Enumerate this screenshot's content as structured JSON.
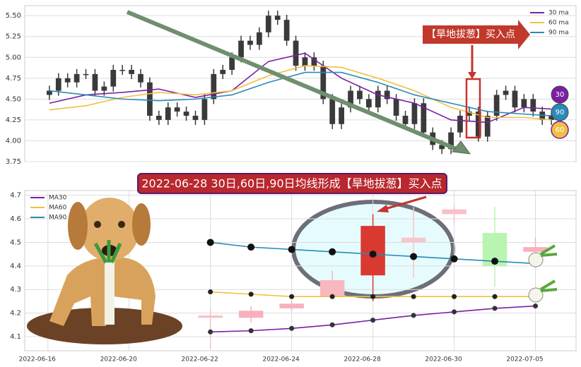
{
  "chart_data": [
    {
      "type": "candlestick",
      "annotation": "【旱地拔葱】买入点",
      "badges": [
        "30",
        "90",
        "60"
      ],
      "x": [
        0,
        1,
        2,
        3,
        4,
        5,
        6,
        7,
        8,
        9,
        10,
        11,
        12,
        13,
        14,
        15,
        16,
        17,
        18,
        19,
        20,
        21,
        22,
        23,
        24,
        25,
        26,
        27,
        28,
        29,
        30,
        31,
        32,
        33,
        34,
        35,
        36,
        37,
        38,
        39,
        40,
        41,
        42,
        43,
        44,
        45,
        46,
        47,
        48,
        49,
        50,
        51,
        52,
        53,
        54,
        55
      ],
      "open": [
        4.55,
        4.6,
        4.75,
        4.7,
        4.8,
        4.8,
        4.6,
        4.65,
        4.85,
        4.85,
        4.8,
        4.7,
        4.3,
        4.25,
        4.4,
        4.35,
        4.3,
        4.25,
        4.5,
        4.8,
        4.85,
        5.0,
        5.2,
        5.15,
        5.3,
        5.5,
        5.45,
        5.2,
        4.9,
        5.0,
        4.9,
        4.5,
        4.2,
        4.4,
        4.6,
        4.5,
        4.4,
        4.6,
        4.5,
        4.3,
        4.2,
        4.45,
        4.1,
        3.95,
        3.9,
        4.1,
        4.3,
        4.35,
        4.05,
        4.3,
        4.55,
        4.6,
        4.4,
        4.5,
        4.35,
        4.25
      ],
      "high": [
        4.66,
        4.81,
        4.81,
        4.86,
        4.86,
        4.86,
        4.71,
        4.91,
        4.91,
        4.91,
        4.86,
        4.76,
        4.36,
        4.46,
        4.46,
        4.41,
        4.36,
        4.56,
        4.86,
        4.91,
        5.06,
        5.26,
        5.26,
        5.36,
        5.56,
        5.56,
        5.51,
        5.26,
        5.06,
        5.06,
        4.96,
        4.56,
        4.46,
        4.66,
        4.66,
        4.56,
        4.66,
        4.66,
        4.56,
        4.36,
        4.51,
        4.51,
        4.16,
        4.01,
        4.16,
        4.36,
        4.41,
        4.41,
        4.36,
        4.61,
        4.66,
        4.66,
        4.56,
        4.56,
        4.41,
        4.36
      ],
      "low": [
        4.49,
        4.54,
        4.64,
        4.64,
        4.74,
        4.54,
        4.54,
        4.59,
        4.79,
        4.74,
        4.64,
        4.24,
        4.19,
        4.19,
        4.29,
        4.24,
        4.19,
        4.19,
        4.44,
        4.74,
        4.79,
        4.94,
        5.09,
        5.09,
        5.24,
        5.39,
        5.14,
        4.84,
        4.84,
        4.84,
        4.44,
        4.14,
        4.14,
        4.34,
        4.44,
        4.34,
        4.34,
        4.44,
        4.24,
        4.14,
        4.14,
        4.04,
        3.89,
        3.84,
        3.84,
        4.04,
        4.24,
        3.99,
        3.99,
        4.24,
        4.49,
        4.34,
        4.34,
        4.29,
        4.19,
        4.19
      ],
      "close": [
        4.6,
        4.75,
        4.7,
        4.8,
        4.8,
        4.6,
        4.65,
        4.85,
        4.85,
        4.8,
        4.7,
        4.3,
        4.25,
        4.4,
        4.35,
        4.3,
        4.25,
        4.5,
        4.8,
        4.85,
        5.0,
        5.2,
        5.15,
        5.3,
        5.5,
        5.45,
        5.2,
        4.9,
        5.0,
        4.9,
        4.5,
        4.2,
        4.4,
        4.6,
        4.5,
        4.4,
        4.6,
        4.5,
        4.3,
        4.2,
        4.45,
        4.1,
        3.95,
        3.9,
        4.1,
        4.3,
        4.35,
        4.05,
        4.3,
        4.55,
        4.6,
        4.4,
        4.5,
        4.35,
        4.25,
        4.3
      ],
      "candle_color": "#3a3a3a",
      "series": [
        {
          "name": "30 ma",
          "color": "#7b1fa2",
          "x": [
            0,
            4,
            8,
            12,
            16,
            20,
            24,
            28,
            32,
            36,
            40,
            44,
            48,
            52,
            55
          ],
          "values": [
            4.45,
            4.55,
            4.58,
            4.62,
            4.52,
            4.6,
            4.95,
            5.05,
            4.75,
            4.55,
            4.45,
            4.25,
            4.22,
            4.4,
            4.38
          ]
        },
        {
          "name": "60 ma",
          "color": "#f0c040",
          "x": [
            0,
            4,
            8,
            12,
            16,
            20,
            24,
            28,
            32,
            36,
            40,
            44,
            48,
            52,
            55
          ],
          "values": [
            4.37,
            4.42,
            4.52,
            4.58,
            4.55,
            4.6,
            4.78,
            4.9,
            4.88,
            4.75,
            4.6,
            4.4,
            4.28,
            4.28,
            4.25
          ]
        },
        {
          "name": "90 ma",
          "color": "#2a8ab8",
          "x": [
            0,
            4,
            8,
            12,
            16,
            20,
            24,
            28,
            32,
            36,
            40,
            44,
            48,
            52,
            55
          ],
          "values": [
            4.6,
            4.55,
            4.5,
            4.48,
            4.5,
            4.55,
            4.7,
            4.82,
            4.82,
            4.7,
            4.55,
            4.45,
            4.35,
            4.32,
            4.3
          ]
        }
      ],
      "xlim": [
        -2.7,
        57.7
      ],
      "ylim": [
        3.75,
        5.62
      ],
      "yticks": [
        3.75,
        {
          "value": 4.0,
          "label": "4.00"
        },
        4.25,
        {
          "value": 4.5,
          "label": "4.50"
        },
        4.75,
        {
          "value": 5.0,
          "label": "5.00"
        },
        5.25,
        {
          "value": 5.5,
          "label": "5.50"
        }
      ],
      "grid": true,
      "legend": "upper right"
    },
    {
      "type": "candlestick",
      "title": "2022-06-28 30日,60日,90日均线形成【旱地拔葱】买入点",
      "x": [
        0,
        1,
        2,
        3,
        4,
        5,
        6,
        7,
        8
      ],
      "open": [
        4.18,
        4.18,
        4.22,
        4.27,
        4.36,
        4.5,
        4.62,
        4.54,
        4.46
      ],
      "high": [
        4.22,
        4.23,
        4.25,
        4.38,
        4.62,
        4.65,
        4.66,
        4.65,
        4.52
      ],
      "low": [
        4.05,
        4.16,
        4.21,
        4.26,
        4.25,
        4.35,
        4.58,
        4.31,
        4.4
      ],
      "close": [
        4.19,
        4.21,
        4.24,
        4.34,
        4.57,
        4.52,
        4.64,
        4.4,
        4.48
      ],
      "candle_colors": [
        "#f8c0c8",
        "#f8b0bc",
        "#f8b0bc",
        "#f8b8c0",
        "#d83a32",
        "#f5c6cb",
        "#f8c0c8",
        "#b8f5b0",
        "#f8b0bc"
      ],
      "series": [
        {
          "name": "MA30",
          "color": "#7b1fa2",
          "values": [
            4.12,
            4.125,
            4.135,
            4.15,
            4.17,
            4.19,
            4.205,
            4.22,
            4.23
          ]
        },
        {
          "name": "MA60",
          "color": "#f0c040",
          "values": [
            4.29,
            4.28,
            4.27,
            4.27,
            4.27,
            4.27,
            4.27,
            4.27,
            4.27
          ]
        },
        {
          "name": "MA90",
          "color": "#2a8ab8",
          "values": [
            4.5,
            4.48,
            4.47,
            4.46,
            4.45,
            4.44,
            4.43,
            4.42,
            4.41
          ]
        }
      ],
      "markers": true,
      "xlim": [
        -4.57,
        9.0
      ],
      "ylim": [
        4.04,
        4.72
      ],
      "xticks": [
        {
          "value": -4,
          "label": "2022-06-16"
        },
        {
          "value": -2,
          "label": "2022-06-20"
        },
        {
          "value": 0,
          "label": "2022-06-22"
        },
        {
          "value": 2,
          "label": "2022-06-24"
        },
        {
          "value": 4,
          "label": "2022-06-28"
        },
        {
          "value": 6,
          "label": "2022-06-30"
        },
        {
          "value": 8,
          "label": "2022-07-05"
        }
      ],
      "yticks": [
        4.1,
        4.2,
        4.3,
        4.4,
        4.5,
        4.6,
        4.7
      ],
      "grid": true,
      "legend": "upper left"
    }
  ]
}
